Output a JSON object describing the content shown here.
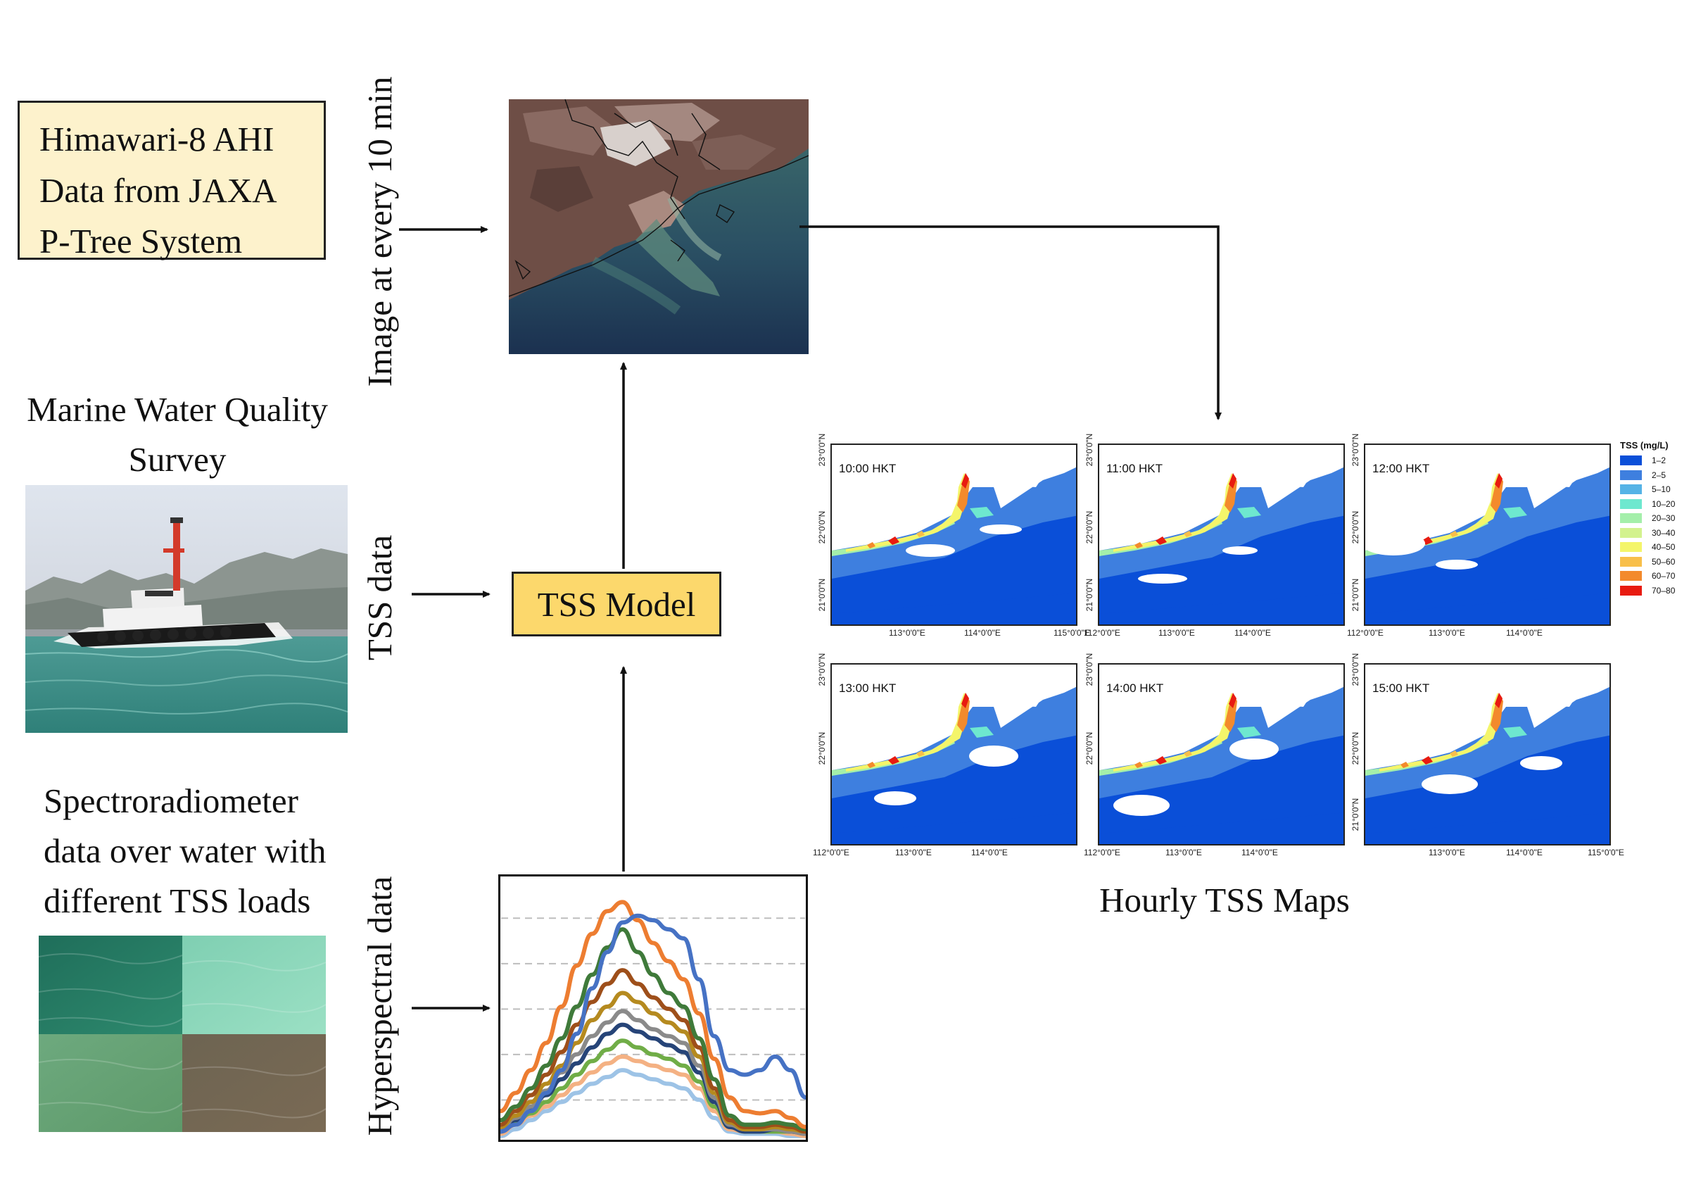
{
  "source_box": {
    "lines": [
      "Himawari-8 AHI",
      "Data from JAXA",
      "P-Tree System"
    ]
  },
  "labels": {
    "image_interval": "Image at every 10 min",
    "tss_data": "TSS data",
    "hyperspectral": "Hyperspectral data"
  },
  "survey_title": {
    "lines": [
      "Marine Water Quality",
      "Survey"
    ]
  },
  "spectro_title": {
    "lines": [
      "Spectroradiometer",
      "data over water with",
      "different TSS loads"
    ]
  },
  "model_label": "TSS Model",
  "maps_caption": "Hourly TSS Maps",
  "maps": {
    "times": [
      "10:00 HKT",
      "11:00 HKT",
      "12:00 HKT",
      "13:00 HKT",
      "14:00 HKT",
      "15:00 HKT"
    ],
    "lat_ticks": [
      "23°0'0\"N",
      "22°0'0\"N",
      "21°0'0\"N"
    ],
    "lon_ticks": [
      "112°0'0\"E",
      "113°0'0\"E",
      "114°0'0\"E",
      "115°0'0\"E"
    ]
  },
  "legend": {
    "title": "TSS (mg/L)",
    "items": [
      {
        "label": "1–2",
        "color": "#0a4fd8"
      },
      {
        "label": "2–5",
        "color": "#3e7fdf"
      },
      {
        "label": "5–10",
        "color": "#55b3e6"
      },
      {
        "label": "10–20",
        "color": "#6ee8cf"
      },
      {
        "label": "20–30",
        "color": "#a4efaa"
      },
      {
        "label": "30–40",
        "color": "#d3f28e"
      },
      {
        "label": "40–50",
        "color": "#f4f56a"
      },
      {
        "label": "50–60",
        "color": "#f8bf4a"
      },
      {
        "label": "60–70",
        "color": "#f38a2c"
      },
      {
        "label": "70–80",
        "color": "#e81b10"
      }
    ]
  },
  "chart_data": {
    "type": "line",
    "title": "",
    "xlabel": "",
    "ylabel": "",
    "x": [
      0,
      1,
      2,
      3,
      4,
      5,
      6,
      7,
      8,
      9,
      10,
      11,
      12,
      13,
      14,
      15,
      16,
      17,
      18,
      19,
      20
    ],
    "series": [
      {
        "color": "#4672c4",
        "values": [
          3,
          6,
          12,
          20,
          30,
          46,
          66,
          82,
          95,
          98,
          96,
          92,
          88,
          70,
          45,
          30,
          28,
          30,
          36,
          30,
          18
        ]
      },
      {
        "color": "#ed7d31",
        "values": [
          12,
          20,
          30,
          42,
          58,
          76,
          90,
          100,
          104,
          96,
          86,
          78,
          70,
          55,
          35,
          18,
          12,
          11,
          12,
          9,
          5
        ]
      },
      {
        "color": "#3f7a3a",
        "values": [
          8,
          14,
          22,
          32,
          44,
          58,
          72,
          84,
          92,
          82,
          72,
          64,
          58,
          44,
          26,
          10,
          6,
          6,
          7,
          6,
          4
        ]
      },
      {
        "color": "#9e4f1a",
        "values": [
          6,
          12,
          19,
          28,
          38,
          50,
          60,
          68,
          74,
          68,
          62,
          57,
          52,
          40,
          22,
          8,
          5,
          5,
          6,
          5,
          3
        ]
      },
      {
        "color": "#b58a1f",
        "values": [
          5,
          10,
          16,
          24,
          32,
          42,
          52,
          58,
          64,
          60,
          55,
          51,
          47,
          36,
          20,
          7,
          4,
          4,
          5,
          4,
          3
        ]
      },
      {
        "color": "#8a8a8a",
        "values": [
          4,
          9,
          14,
          21,
          29,
          37,
          45,
          51,
          56,
          52,
          48,
          45,
          42,
          32,
          18,
          6,
          4,
          4,
          4,
          3,
          2
        ]
      },
      {
        "color": "#264478",
        "values": [
          3,
          8,
          13,
          19,
          26,
          33,
          40,
          46,
          50,
          47,
          44,
          41,
          38,
          29,
          16,
          5,
          3,
          3,
          4,
          3,
          2
        ]
      },
      {
        "color": "#70ad47",
        "values": [
          3,
          7,
          11,
          16,
          22,
          28,
          34,
          39,
          43,
          40,
          37,
          35,
          32,
          25,
          14,
          5,
          3,
          3,
          3,
          3,
          2
        ]
      },
      {
        "color": "#f4b183",
        "values": [
          2,
          6,
          10,
          14,
          19,
          24,
          29,
          33,
          36,
          34,
          32,
          30,
          28,
          22,
          12,
          4,
          3,
          3,
          3,
          2,
          1
        ]
      },
      {
        "color": "#9dc3e6",
        "values": [
          1,
          4,
          8,
          12,
          16,
          20,
          24,
          27,
          30,
          28,
          26,
          24,
          22,
          17,
          9,
          3,
          2,
          2,
          2,
          1,
          1
        ]
      }
    ],
    "grid": true,
    "ylim": [
      0,
      110
    ]
  }
}
